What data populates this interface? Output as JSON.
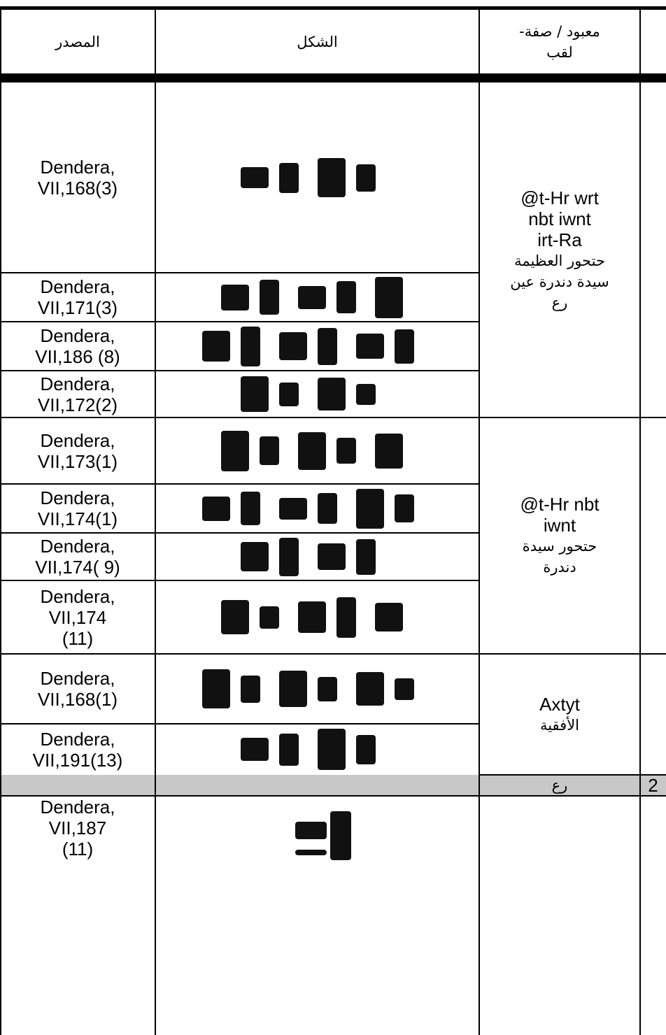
{
  "header": {
    "source": "المصدر",
    "shape": "الشكل",
    "deity": [
      "معبود / صفة-",
      "لقب"
    ]
  },
  "rows": [
    {
      "source": [
        "Dendera,",
        "VII,168(3)"
      ]
    },
    {
      "source": [
        "Dendera,",
        "VII,171(3)"
      ]
    },
    {
      "source": [
        "Dendera,",
        "VII,186 (8)"
      ]
    },
    {
      "source": [
        "Dendera,",
        "VII,172(2)"
      ]
    },
    {
      "source": [
        "Dendera,",
        "VII,173(1)"
      ]
    },
    {
      "source": [
        "Dendera,",
        "VII,174(1)"
      ]
    },
    {
      "source": [
        "Dendera,",
        "VII,174( 9)"
      ]
    },
    {
      "source": [
        "Dendera,",
        "VII,174",
        "(11)"
      ]
    },
    {
      "source": [
        "Dendera,",
        "VII,168(1)"
      ]
    },
    {
      "source": [
        "Dendera,",
        "VII,191(13)"
      ]
    }
  ],
  "groups": [
    {
      "latin": [
        "@t-Hr wrt",
        "nbt iwnt",
        "irt-Ra"
      ],
      "arabic": [
        "حتحور العظيمة",
        "سيدة دندرة عين",
        "رع"
      ]
    },
    {
      "latin": [
        "@t-Hr nbt",
        "iwnt"
      ],
      "arabic": [
        "حتحور سيدة",
        "دندرة"
      ]
    },
    {
      "latin": [
        "Axtyt"
      ],
      "arabic": [
        "الأفقية"
      ]
    }
  ],
  "section": {
    "number": "2",
    "deity": "رع"
  },
  "last_row": {
    "source": [
      "Dendera,",
      "VII,187",
      "(11)"
    ]
  }
}
